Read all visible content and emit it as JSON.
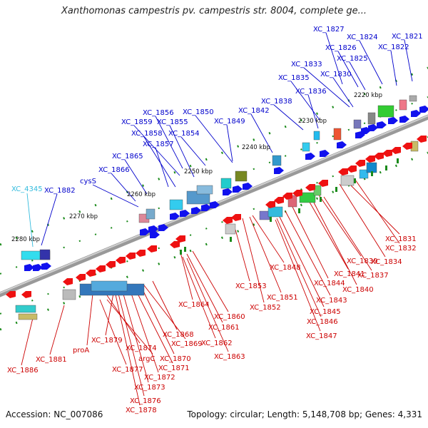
{
  "title": "Xanthomonas campestris pv. campestris str. 8004, complete ge...",
  "accession": "Accession: NC_007086",
  "summary": "Topology: circular; Length: 5,148,708 bp; Genes: 4,331",
  "colors": {
    "backbone": "#888888",
    "forward_label": "#0000cc",
    "reverse_label": "#cc0000",
    "special_label": "#33bbdd",
    "tick": "#1a8a1a"
  },
  "kbp_labels": [
    "2220 kbp",
    "2230 kbp",
    "2240 kbp",
    "2250 kbp",
    "2260 kbp",
    "2270 kbp",
    "2280 kbp"
  ],
  "forward_genes": [
    "XC_1827",
    "XC_1824",
    "XC_1821",
    "XC_1826",
    "XC_1822",
    "XC_1825",
    "XC_1833",
    "XC_1830",
    "XC_1835",
    "XC_1836",
    "XC_1838",
    "XC_1842",
    "XC_1856",
    "XC_1850",
    "XC_1859",
    "XC_1855",
    "XC_1849",
    "XC_1858",
    "XC_1854",
    "XC_1857",
    "XC_1865",
    "XC_1866",
    "cysS",
    "XC_1882"
  ],
  "special_genes": [
    "XC_4345"
  ],
  "reverse_genes": [
    "XC_1831",
    "XC_1832",
    "XC_1834",
    "XC_1839",
    "XC_1837",
    "XC_1848",
    "XC_1841",
    "XC_1844",
    "XC_1840",
    "XC_1843",
    "XC_1853",
    "XC_1851",
    "XC_1852",
    "XC_1845",
    "XC_1846",
    "XC_1847",
    "XC_1864",
    "XC_1860",
    "XC_1861",
    "XC_1868",
    "XC_1862",
    "XC_1879",
    "XC_1874",
    "XC_1869",
    "XC_1863",
    "proA",
    "argC",
    "XC_1870",
    "XC_1881",
    "XC_1877",
    "XC_1871",
    "XC_1872",
    "XC_1886",
    "XC_1873",
    "XC_1876",
    "XC_1878"
  ]
}
